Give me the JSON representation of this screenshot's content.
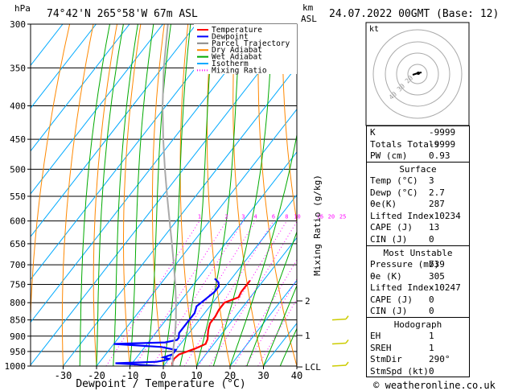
{
  "header": {
    "hpa_label": "hPa",
    "location": "74°42'N 265°58'W 67m ASL",
    "km_label": "km",
    "asl_label": "ASL",
    "datetime": "24.07.2022 00GMT (Base: 12)"
  },
  "axes": {
    "x_label": "Dewpoint / Temperature (°C)",
    "y2_label": "Mixing Ratio (g/kg)"
  },
  "legend": [
    {
      "label": "Temperature",
      "color": "#ff0000",
      "style": "solid"
    },
    {
      "label": "Dewpoint",
      "color": "#0000ff",
      "style": "solid"
    },
    {
      "label": "Parcel Trajectory",
      "color": "#888888",
      "style": "solid"
    },
    {
      "label": "Dry Adiabat",
      "color": "#ff8800",
      "style": "solid"
    },
    {
      "label": "Wet Adiabat",
      "color": "#00aa00",
      "style": "solid"
    },
    {
      "label": "Isotherm",
      "color": "#00aaff",
      "style": "solid"
    },
    {
      "label": "Mixing Ratio",
      "color": "#ff00ff",
      "style": "dotted"
    }
  ],
  "hodograph": {
    "label": "kt",
    "ring_labels": [
      "40",
      "30",
      "20"
    ]
  },
  "indices": [
    {
      "key": "K",
      "value": "-9999"
    },
    {
      "key": "Totals Totals",
      "value": "-9999"
    },
    {
      "key": "PW (cm)",
      "value": "0.93"
    }
  ],
  "surface": {
    "title": "Surface",
    "rows": [
      {
        "key": "Temp (°C)",
        "value": "3"
      },
      {
        "key": "Dewp (°C)",
        "value": "2.7"
      },
      {
        "key": "θe(K)",
        "value": "287"
      },
      {
        "key": "Lifted Index",
        "value": "-10234"
      },
      {
        "key": "CAPE (J)",
        "value": "13"
      },
      {
        "key": "CIN (J)",
        "value": "0"
      }
    ]
  },
  "most_unstable": {
    "title": "Most Unstable",
    "rows": [
      {
        "key": "Pressure (mb)",
        "value": "739"
      },
      {
        "key": "θe (K)",
        "value": "305"
      },
      {
        "key": "Lifted Index",
        "value": "-10247"
      },
      {
        "key": "CAPE (J)",
        "value": "0"
      },
      {
        "key": "CIN (J)",
        "value": "0"
      }
    ]
  },
  "hodograph_table": {
    "title": "Hodograph",
    "rows": [
      {
        "key": "EH",
        "value": "1"
      },
      {
        "key": "SREH",
        "value": "1"
      },
      {
        "key": "StmDir",
        "value": "290°"
      },
      {
        "key": "StmSpd (kt)",
        "value": "0"
      }
    ]
  },
  "copyright": "© weatheronline.co.uk",
  "chart_data": {
    "type": "line",
    "title": "24.07.2022 00GMT (Base: 12)",
    "xlabel": "Dewpoint / Temperature (°C)",
    "ylabel": "hPa",
    "y2label": "Mixing Ratio (g/kg)",
    "x_ticks": [
      -30,
      -20,
      -10,
      0,
      10,
      20,
      30,
      40
    ],
    "xlim": [
      -35,
      40
    ],
    "pressure_levels": [
      300,
      350,
      400,
      450,
      500,
      550,
      600,
      650,
      700,
      750,
      800,
      850,
      900,
      950,
      1000
    ],
    "ylim": [
      1000,
      300
    ],
    "y_scale": "log",
    "km_ticks": [
      {
        "km": "1",
        "p": 898
      },
      {
        "km": "2",
        "p": 795
      },
      {
        "km": "LCL",
        "p": 1003
      }
    ],
    "mixing_ratio_labels": [
      "1",
      "2",
      "3",
      "4",
      "6",
      "8",
      "10",
      "16",
      "20",
      "25"
    ],
    "mixing_ratio_values": [
      1,
      2,
      3,
      4,
      6,
      8,
      10,
      16,
      20,
      25
    ],
    "series": [
      {
        "name": "Temperature",
        "color": "#ff0000",
        "p": [
          1003,
          990,
          975,
          960,
          940,
          925,
          910,
          895,
          880,
          860,
          840,
          820,
          800,
          785,
          770,
          755,
          740
        ],
        "t": [
          3.0,
          2.0,
          1.5,
          2.0,
          5.5,
          7.5,
          7.0,
          6.0,
          5.0,
          4.0,
          4.0,
          3.5,
          3.5,
          6.5,
          6.0,
          6.0,
          6.0
        ]
      },
      {
        "name": "Dewpoint",
        "color": "#0000ff",
        "p": [
          1003,
          995,
          990,
          985,
          980,
          975,
          970,
          960,
          945,
          935,
          925,
          920,
          912,
          905,
          890,
          870,
          850,
          830,
          810,
          790,
          770,
          755,
          745,
          735
        ],
        "t": [
          2.7,
          -8,
          -15,
          -3,
          -1,
          0,
          -2,
          0,
          0,
          -5,
          -20,
          -5,
          -2,
          -2,
          -3,
          -3,
          -3,
          -3,
          -4,
          -3,
          -2,
          -2,
          -3,
          -5
        ]
      },
      {
        "name": "Parcel Trajectory",
        "color": "#aaaaaa",
        "p": [
          1003,
          950,
          900,
          850,
          800,
          750,
          700,
          650,
          600,
          550,
          500,
          450,
          400,
          350,
          300
        ],
        "t": [
          3.0,
          -0.5,
          -3.5,
          -7.0,
          -11.0,
          -15.5,
          -20.5,
          -26.0,
          -32.0,
          -38.5,
          -45.5,
          -53.0,
          -61.0,
          -69.5,
          -78.5
        ]
      }
    ],
    "wind_barbs_p": [
      1000,
      925,
      850
    ],
    "grid": true
  }
}
